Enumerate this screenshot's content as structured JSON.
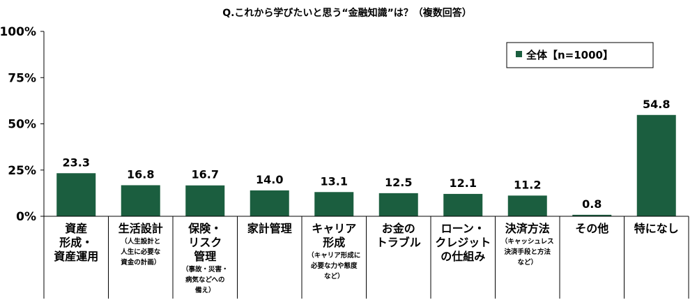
{
  "chart_data": {
    "type": "bar",
    "title": "Q.これから学びたいと思う“金融知識”は？（複数回答）",
    "ylim": [
      0,
      100
    ],
    "yticks": [
      "0%",
      "25%",
      "50%",
      "75%",
      "100%"
    ],
    "grid": false,
    "legend_position": "top-right",
    "colors": {
      "bar": "#1b5e3f",
      "axis": "#000000"
    },
    "series": [
      {
        "name": "全体【n=1000】",
        "values": [
          23.3,
          16.8,
          16.7,
          14.0,
          13.1,
          12.5,
          12.1,
          11.2,
          0.8,
          54.8
        ]
      }
    ],
    "value_labels": [
      "23.3",
      "16.8",
      "16.7",
      "14.0",
      "13.1",
      "12.5",
      "12.1",
      "11.2",
      "0.8",
      "54.8"
    ],
    "categories": [
      {
        "lines": [
          "資産",
          "形成・",
          "資産運用"
        ],
        "sub": []
      },
      {
        "lines": [
          "生活設計"
        ],
        "sub": [
          "（人生設計と",
          "人生に必要な",
          "資金の計画）"
        ]
      },
      {
        "lines": [
          "保険・",
          "リスク",
          "管理"
        ],
        "sub": [
          "（事故・災害・",
          "病気などへの",
          "備え）"
        ]
      },
      {
        "lines": [
          "家計管理"
        ],
        "sub": []
      },
      {
        "lines": [
          "キャリア",
          "形成"
        ],
        "sub": [
          "（キャリア形成に",
          "必要な力や態度",
          "など）"
        ]
      },
      {
        "lines": [
          "お金の",
          "トラブル"
        ],
        "sub": []
      },
      {
        "lines": [
          "ローン・",
          "クレジット",
          "の仕組み"
        ],
        "sub": []
      },
      {
        "lines": [
          "決済方法"
        ],
        "sub": [
          "（キャッシュレス",
          "決済手段と方法",
          "など）"
        ]
      },
      {
        "lines": [
          "その他"
        ],
        "sub": []
      },
      {
        "lines": [
          "特になし"
        ],
        "sub": []
      }
    ]
  }
}
